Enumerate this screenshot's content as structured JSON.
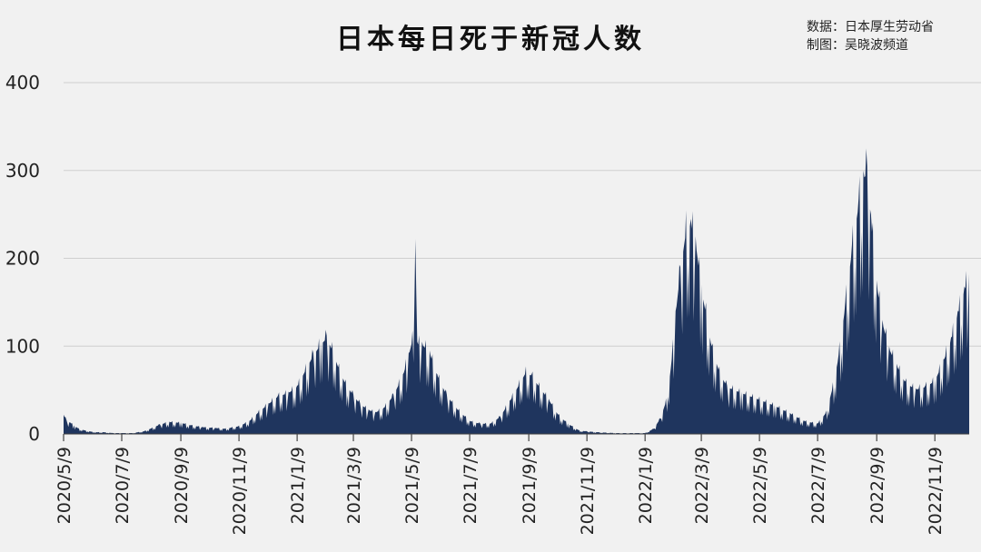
{
  "title": "日本每日死于新冠人数",
  "source_line": "数据：日本厚生劳动省",
  "credit_line": "制图：吴晓波频道",
  "colors": {
    "area": "#1f355e",
    "background": "#f1f1f1",
    "grid": "#cfcfcf"
  },
  "chart_data": {
    "type": "area",
    "title": "日本每日死于新冠人数",
    "xlabel": "",
    "ylabel": "",
    "ylim": [
      0,
      400
    ],
    "y_ticks": [
      0,
      100,
      200,
      300,
      400
    ],
    "grid": true,
    "legend": "none",
    "x_range": [
      "2020-05-09",
      "2022-12-15"
    ],
    "x_ticks": [
      "2020/5/9",
      "2020/7/9",
      "2020/9/9",
      "2020/11/9",
      "2021/1/9",
      "2021/3/9",
      "2021/5/9",
      "2021/7/9",
      "2021/9/9",
      "2021/11/9",
      "2022/1/9",
      "2022/3/9",
      "2022/5/9",
      "2022/7/9",
      "2022/9/9",
      "2022/11/9"
    ],
    "series": [
      {
        "points": [
          [
            "2020-05-09",
            22
          ],
          [
            "2020-05-12",
            16
          ],
          [
            "2020-05-16",
            13
          ],
          [
            "2020-05-20",
            10
          ],
          [
            "2020-05-25",
            6
          ],
          [
            "2020-06-01",
            4
          ],
          [
            "2020-06-10",
            2
          ],
          [
            "2020-06-20",
            2
          ],
          [
            "2020-06-30",
            1
          ],
          [
            "2020-07-09",
            1
          ],
          [
            "2020-07-20",
            1
          ],
          [
            "2020-08-01",
            3
          ],
          [
            "2020-08-10",
            7
          ],
          [
            "2020-08-18",
            11
          ],
          [
            "2020-08-28",
            14
          ],
          [
            "2020-09-09",
            13
          ],
          [
            "2020-09-20",
            10
          ],
          [
            "2020-10-01",
            8
          ],
          [
            "2020-10-15",
            7
          ],
          [
            "2020-10-25",
            6
          ],
          [
            "2020-11-09",
            9
          ],
          [
            "2020-11-20",
            15
          ],
          [
            "2020-11-30",
            26
          ],
          [
            "2020-12-10",
            35
          ],
          [
            "2020-12-20",
            44
          ],
          [
            "2020-12-31",
            48
          ],
          [
            "2021-01-09",
            55
          ],
          [
            "2021-01-18",
            75
          ],
          [
            "2021-01-26",
            92
          ],
          [
            "2021-02-03",
            105
          ],
          [
            "2021-02-09",
            112
          ],
          [
            "2021-02-15",
            98
          ],
          [
            "2021-02-22",
            75
          ],
          [
            "2021-03-01",
            58
          ],
          [
            "2021-03-09",
            45
          ],
          [
            "2021-03-16",
            35
          ],
          [
            "2021-03-25",
            28
          ],
          [
            "2021-04-01",
            25
          ],
          [
            "2021-04-10",
            30
          ],
          [
            "2021-04-20",
            45
          ],
          [
            "2021-04-30",
            68
          ],
          [
            "2021-05-06",
            92
          ],
          [
            "2021-05-10",
            110
          ],
          [
            "2021-05-13",
            222
          ],
          [
            "2021-05-15",
            105
          ],
          [
            "2021-05-20",
            105
          ],
          [
            "2021-05-28",
            95
          ],
          [
            "2021-06-05",
            68
          ],
          [
            "2021-06-15",
            45
          ],
          [
            "2021-06-25",
            30
          ],
          [
            "2021-07-09",
            15
          ],
          [
            "2021-07-20",
            12
          ],
          [
            "2021-07-31",
            12
          ],
          [
            "2021-08-10",
            20
          ],
          [
            "2021-08-20",
            38
          ],
          [
            "2021-08-30",
            58
          ],
          [
            "2021-09-06",
            72
          ],
          [
            "2021-09-12",
            68
          ],
          [
            "2021-09-20",
            55
          ],
          [
            "2021-09-30",
            40
          ],
          [
            "2021-10-10",
            22
          ],
          [
            "2021-10-20",
            12
          ],
          [
            "2021-11-01",
            4
          ],
          [
            "2021-11-09",
            3
          ],
          [
            "2021-11-20",
            2
          ],
          [
            "2021-12-10",
            1
          ],
          [
            "2021-12-30",
            1
          ],
          [
            "2022-01-09",
            1
          ],
          [
            "2022-01-18",
            6
          ],
          [
            "2022-01-25",
            18
          ],
          [
            "2022-01-31",
            38
          ],
          [
            "2022-02-05",
            75
          ],
          [
            "2022-02-10",
            140
          ],
          [
            "2022-02-15",
            190
          ],
          [
            "2022-02-21",
            238
          ],
          [
            "2022-02-26",
            245
          ],
          [
            "2022-03-03",
            225
          ],
          [
            "2022-03-09",
            170
          ],
          [
            "2022-03-14",
            140
          ],
          [
            "2022-03-20",
            100
          ],
          [
            "2022-03-28",
            72
          ],
          [
            "2022-04-05",
            55
          ],
          [
            "2022-04-20",
            48
          ],
          [
            "2022-05-09",
            40
          ],
          [
            "2022-05-25",
            33
          ],
          [
            "2022-06-10",
            24
          ],
          [
            "2022-06-25",
            15
          ],
          [
            "2022-07-09",
            12
          ],
          [
            "2022-07-18",
            25
          ],
          [
            "2022-07-25",
            55
          ],
          [
            "2022-07-31",
            90
          ],
          [
            "2022-08-07",
            150
          ],
          [
            "2022-08-14",
            215
          ],
          [
            "2022-08-21",
            268
          ],
          [
            "2022-08-26",
            300
          ],
          [
            "2022-08-30",
            305
          ],
          [
            "2022-09-03",
            250
          ],
          [
            "2022-09-09",
            175
          ],
          [
            "2022-09-15",
            130
          ],
          [
            "2022-09-22",
            100
          ],
          [
            "2022-09-30",
            80
          ],
          [
            "2022-10-09",
            60
          ],
          [
            "2022-10-20",
            52
          ],
          [
            "2022-10-30",
            55
          ],
          [
            "2022-11-09",
            62
          ],
          [
            "2022-11-18",
            85
          ],
          [
            "2022-11-26",
            110
          ],
          [
            "2022-12-03",
            140
          ],
          [
            "2022-12-10",
            168
          ],
          [
            "2022-12-15",
            182
          ]
        ]
      }
    ]
  }
}
